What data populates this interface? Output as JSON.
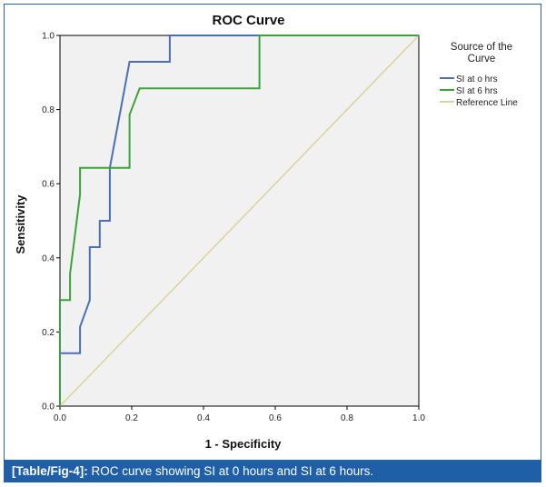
{
  "caption": {
    "label": "[Table/Fig-4]:",
    "text": " ROC curve showing SI at 0 hours and SI at 6 hours."
  },
  "chart_data": {
    "type": "line",
    "title": "ROC Curve",
    "xlabel": "1 - Specificity",
    "ylabel": "Sensitivity",
    "xlim": [
      0,
      1
    ],
    "ylim": [
      0,
      1
    ],
    "xticks": [
      "0.0",
      "0.2",
      "0.4",
      "0.6",
      "0.8",
      "1.0"
    ],
    "yticks": [
      "0.0",
      "0.2",
      "0.4",
      "0.6",
      "0.8",
      "1.0"
    ],
    "grid": false,
    "legend": {
      "title_lines": [
        "Source of the",
        "Curve"
      ],
      "placement": "right"
    },
    "series": [
      {
        "name": "SI at o hrs",
        "color": "#4a6fb5",
        "x": [
          0,
          0,
          0.056,
          0.056,
          0.083,
          0.083,
          0.111,
          0.111,
          0.139,
          0.139,
          0.194,
          0.194,
          0.306,
          0.306,
          1
        ],
        "y": [
          0,
          0.143,
          0.143,
          0.214,
          0.286,
          0.429,
          0.429,
          0.5,
          0.5,
          0.643,
          0.929,
          0.929,
          0.929,
          1,
          1
        ]
      },
      {
        "name": "SI at 6 hrs",
        "color": "#3aa33a",
        "x": [
          0,
          0,
          0.028,
          0.028,
          0.056,
          0.056,
          0.194,
          0.194,
          0.222,
          0.222,
          0.556,
          0.556,
          1
        ],
        "y": [
          0,
          0.286,
          0.286,
          0.357,
          0.571,
          0.643,
          0.643,
          0.786,
          0.857,
          0.857,
          0.857,
          1,
          1
        ]
      },
      {
        "name": "Reference Line",
        "color": "#d9d49a",
        "x": [
          0,
          1
        ],
        "y": [
          0,
          1
        ]
      }
    ]
  },
  "colors": {
    "plot_background": "#f1f1f1",
    "caption_background": "#1f5fa8",
    "border": "#2e5f9e"
  }
}
